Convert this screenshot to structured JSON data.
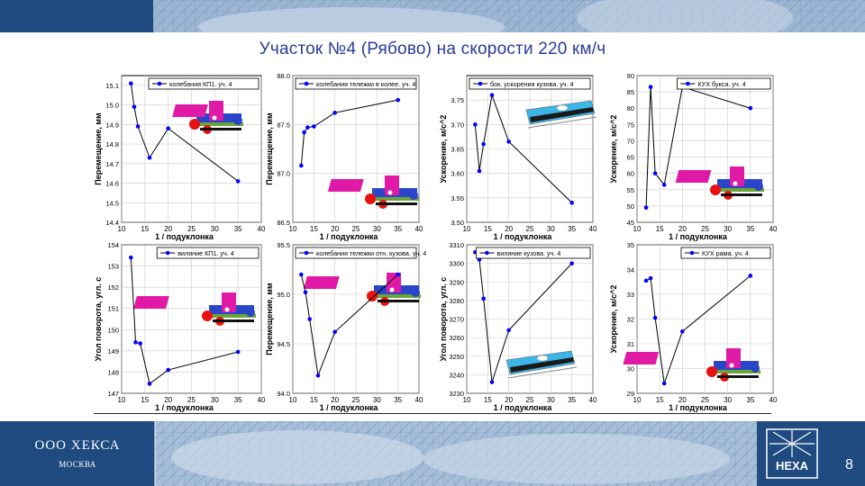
{
  "title": "Участок №4 (Рябово) на скорости 220 км/ч",
  "footer": {
    "company": "ООО ХЕКСА",
    "city": "МОСКВА",
    "logo_text": "HEXA",
    "page_number": "8"
  },
  "colors": {
    "band": "#1f4b80",
    "title": "#2a3a9a",
    "series_line": "#000000",
    "series_marker": "#0000ff"
  },
  "chart_data": [
    {
      "type": "line",
      "legend": "колебания КП1. уч. 4",
      "ylabel": "Перемещение, мм",
      "xlabel": "1 / подуклонка",
      "xlim": [
        10,
        40
      ],
      "ylim": [
        14.4,
        15.15
      ],
      "xticks": [
        10,
        15,
        20,
        25,
        30,
        35,
        40
      ],
      "yticks": [
        14.4,
        14.5,
        14.6,
        14.7,
        14.8,
        14.9,
        15.0,
        15.1
      ],
      "ytick_labels": [
        "14.4",
        "14.5",
        "14.6",
        "14.7",
        "14.8",
        "14.9",
        "15.0",
        "15.1"
      ],
      "x": [
        12,
        12.7,
        13.5,
        16,
        20,
        35
      ],
      "y": [
        15.11,
        14.99,
        14.89,
        14.73,
        14.88,
        14.61
      ],
      "image": "bogie"
    },
    {
      "type": "line",
      "legend": "колебания тележки в колее. уч. 4",
      "ylabel": "Перемещение, мм",
      "xlabel": "1 / подуклонка",
      "xlim": [
        10,
        40
      ],
      "ylim": [
        86.5,
        88.0
      ],
      "xticks": [
        10,
        15,
        20,
        25,
        30,
        35,
        40
      ],
      "yticks": [
        86.5,
        87.0,
        87.5,
        88.0
      ],
      "ytick_labels": [
        "86.5",
        "87.0",
        "87.5",
        "88.0"
      ],
      "x": [
        12,
        12.7,
        13.5,
        15,
        20,
        35
      ],
      "y": [
        87.08,
        87.42,
        87.47,
        87.48,
        87.62,
        87.75
      ],
      "image": "bogie"
    },
    {
      "type": "line",
      "legend": "бок. ускорения кузова. уч. 4",
      "ylabel": "Ускорение, м/с^2",
      "xlabel": "1 / подуклонка",
      "xlim": [
        10,
        40
      ],
      "ylim": [
        3.5,
        3.8
      ],
      "xticks": [
        10,
        15,
        20,
        25,
        30,
        35,
        40
      ],
      "yticks": [
        3.5,
        3.55,
        3.6,
        3.65,
        3.7,
        3.75
      ],
      "ytick_labels": [
        "3.50",
        "3.55",
        "3.60",
        "3.65",
        "3.70",
        "3.75"
      ],
      "x": [
        12,
        13,
        14,
        16,
        20,
        35
      ],
      "y": [
        3.7,
        3.605,
        3.66,
        3.76,
        3.665,
        3.54
      ],
      "image": "car"
    },
    {
      "type": "line",
      "legend": "КУХ букса. уч. 4",
      "ylabel": "Ускорение, м/с^2",
      "xlabel": "1 / подуклонка",
      "xlim": [
        10,
        40
      ],
      "ylim": [
        45,
        90
      ],
      "xticks": [
        10,
        15,
        20,
        25,
        30,
        35,
        40
      ],
      "yticks": [
        45,
        50,
        55,
        60,
        65,
        70,
        75,
        80,
        85,
        90
      ],
      "ytick_labels": [
        "45",
        "50",
        "55",
        "60",
        "65",
        "70",
        "75",
        "80",
        "85",
        "90"
      ],
      "x": [
        12,
        13,
        14,
        16,
        20,
        35
      ],
      "y": [
        49.5,
        86.5,
        60,
        56.5,
        86.5,
        80
      ],
      "image": "bogie"
    },
    {
      "type": "line",
      "legend": "виляние КП1. уч. 4",
      "ylabel": "Угол поворота, угл. с",
      "xlabel": "1 / подуклонка",
      "xlim": [
        10,
        40
      ],
      "ylim": [
        147,
        154
      ],
      "xticks": [
        10,
        15,
        20,
        25,
        30,
        35,
        40
      ],
      "yticks": [
        147,
        148,
        149,
        150,
        151,
        152,
        153,
        154
      ],
      "ytick_labels": [
        "147",
        "148",
        "149",
        "150",
        "151",
        "152",
        "153",
        "154"
      ],
      "x": [
        12,
        13,
        14,
        16,
        20,
        35
      ],
      "y": [
        153.4,
        149.4,
        149.35,
        147.45,
        148.1,
        148.95
      ],
      "image": "bogie"
    },
    {
      "type": "line",
      "legend": "колебания тележки отн. кузова. уч. 4",
      "ylabel": "Перемещение, мм",
      "xlabel": "1 / подуклонка",
      "xlim": [
        10,
        40
      ],
      "ylim": [
        94.0,
        95.5
      ],
      "xticks": [
        10,
        15,
        20,
        25,
        30,
        35,
        40
      ],
      "yticks": [
        94.0,
        94.5,
        95.0,
        95.5
      ],
      "ytick_labels": [
        "94.0",
        "94.5",
        "95.0",
        "95.5"
      ],
      "x": [
        12,
        13,
        14,
        16,
        20,
        35
      ],
      "y": [
        95.2,
        95.02,
        94.75,
        94.18,
        94.62,
        95.2
      ],
      "image": "bogie"
    },
    {
      "type": "line",
      "legend": "виляние кузова. уч. 4",
      "ylabel": "Угол поворота, угл. с",
      "xlabel": "1 / подуклонка",
      "xlim": [
        10,
        40
      ],
      "ylim": [
        3230,
        3310
      ],
      "xticks": [
        10,
        15,
        20,
        25,
        30,
        35,
        40
      ],
      "yticks": [
        3230,
        3240,
        3250,
        3260,
        3270,
        3280,
        3290,
        3300,
        3310
      ],
      "ytick_labels": [
        "3230",
        "3240",
        "3250",
        "3260",
        "3270",
        "3280",
        "3290",
        "3300",
        "3310"
      ],
      "x": [
        12,
        13,
        14,
        16,
        20,
        35
      ],
      "y": [
        3306,
        3302,
        3281,
        3236,
        3264,
        3300
      ],
      "image": "car"
    },
    {
      "type": "line",
      "legend": "КУХ рама. уч. 4",
      "ylabel": "Ускорение, м/с^2",
      "xlabel": "1 / подуклонка",
      "xlim": [
        10,
        40
      ],
      "ylim": [
        29,
        35
      ],
      "xticks": [
        10,
        15,
        20,
        25,
        30,
        35,
        40
      ],
      "yticks": [
        29,
        30,
        31,
        32,
        33,
        34,
        35
      ],
      "ytick_labels": [
        "29",
        "30",
        "31",
        "32",
        "33",
        "34",
        "35"
      ],
      "x": [
        12,
        13,
        14,
        16,
        20,
        35
      ],
      "y": [
        33.55,
        33.65,
        32.05,
        29.4,
        31.5,
        33.75
      ],
      "image": "bogie"
    }
  ]
}
